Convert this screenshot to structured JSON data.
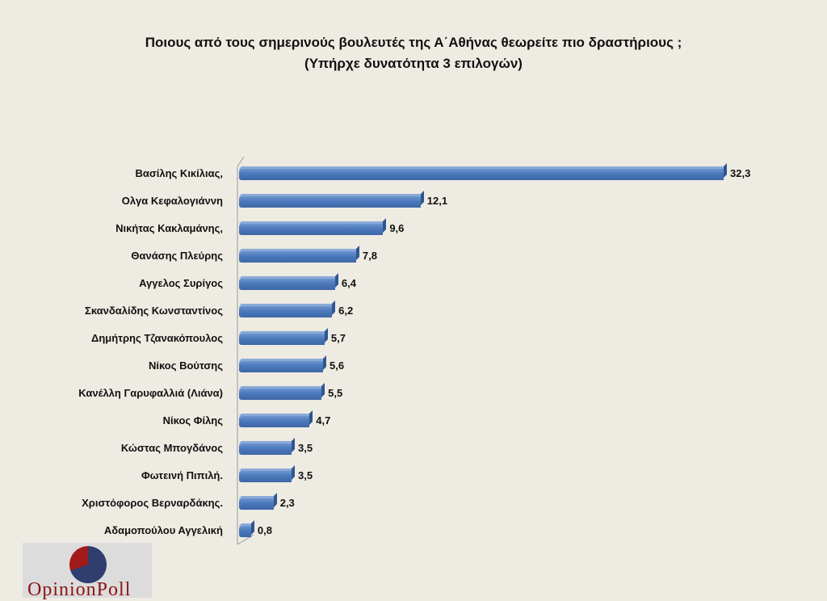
{
  "chart_data": {
    "type": "bar",
    "orientation": "horizontal",
    "title": "Ποιους από τους σημερινούς βουλευτές της Α΄Αθήνας θεωρείτε πιο δραστήριους ;",
    "subtitle": "(Υπήρχε δυνατότητα 3 επιλογών)",
    "xlabel": "",
    "ylabel": "",
    "grid": false,
    "legend": null,
    "categories": [
      "Βασίλης Κικίλιας,",
      "Ολγα Κεφαλογιάννη",
      "Νικήτας Κακλαμάνης,",
      "Θανάσης Πλεύρης",
      "Αγγελος Συρίγος",
      "Σκανδαλίδης Κωνσταντίνος",
      "Δημήτρης Τζανακόπουλος",
      "Νίκος Βούτσης",
      "Κανέλλη Γαρυφαλλιά (Λιάνα)",
      "Νίκος Φίλης",
      "Κώστας Μπογδάνος",
      "Φωτεινή  Πιπιλή.",
      "Χριστόφορος Βερναρδάκης.",
      "Αδαμοπούλου Αγγελική"
    ],
    "values": [
      32.3,
      12.1,
      9.6,
      7.8,
      6.4,
      6.2,
      5.7,
      5.6,
      5.5,
      4.7,
      3.5,
      3.5,
      2.3,
      0.8
    ],
    "value_labels": [
      "32,3",
      "12,1",
      "9,6",
      "7,8",
      "6,4",
      "6,2",
      "5,7",
      "5,6",
      "5,5",
      "4,7",
      "3,5",
      "3,5",
      "2,3",
      "0,8"
    ],
    "bar_color": "#4a78bb"
  },
  "logo": {
    "part1": "Opinion",
    "part2": "Poll"
  }
}
